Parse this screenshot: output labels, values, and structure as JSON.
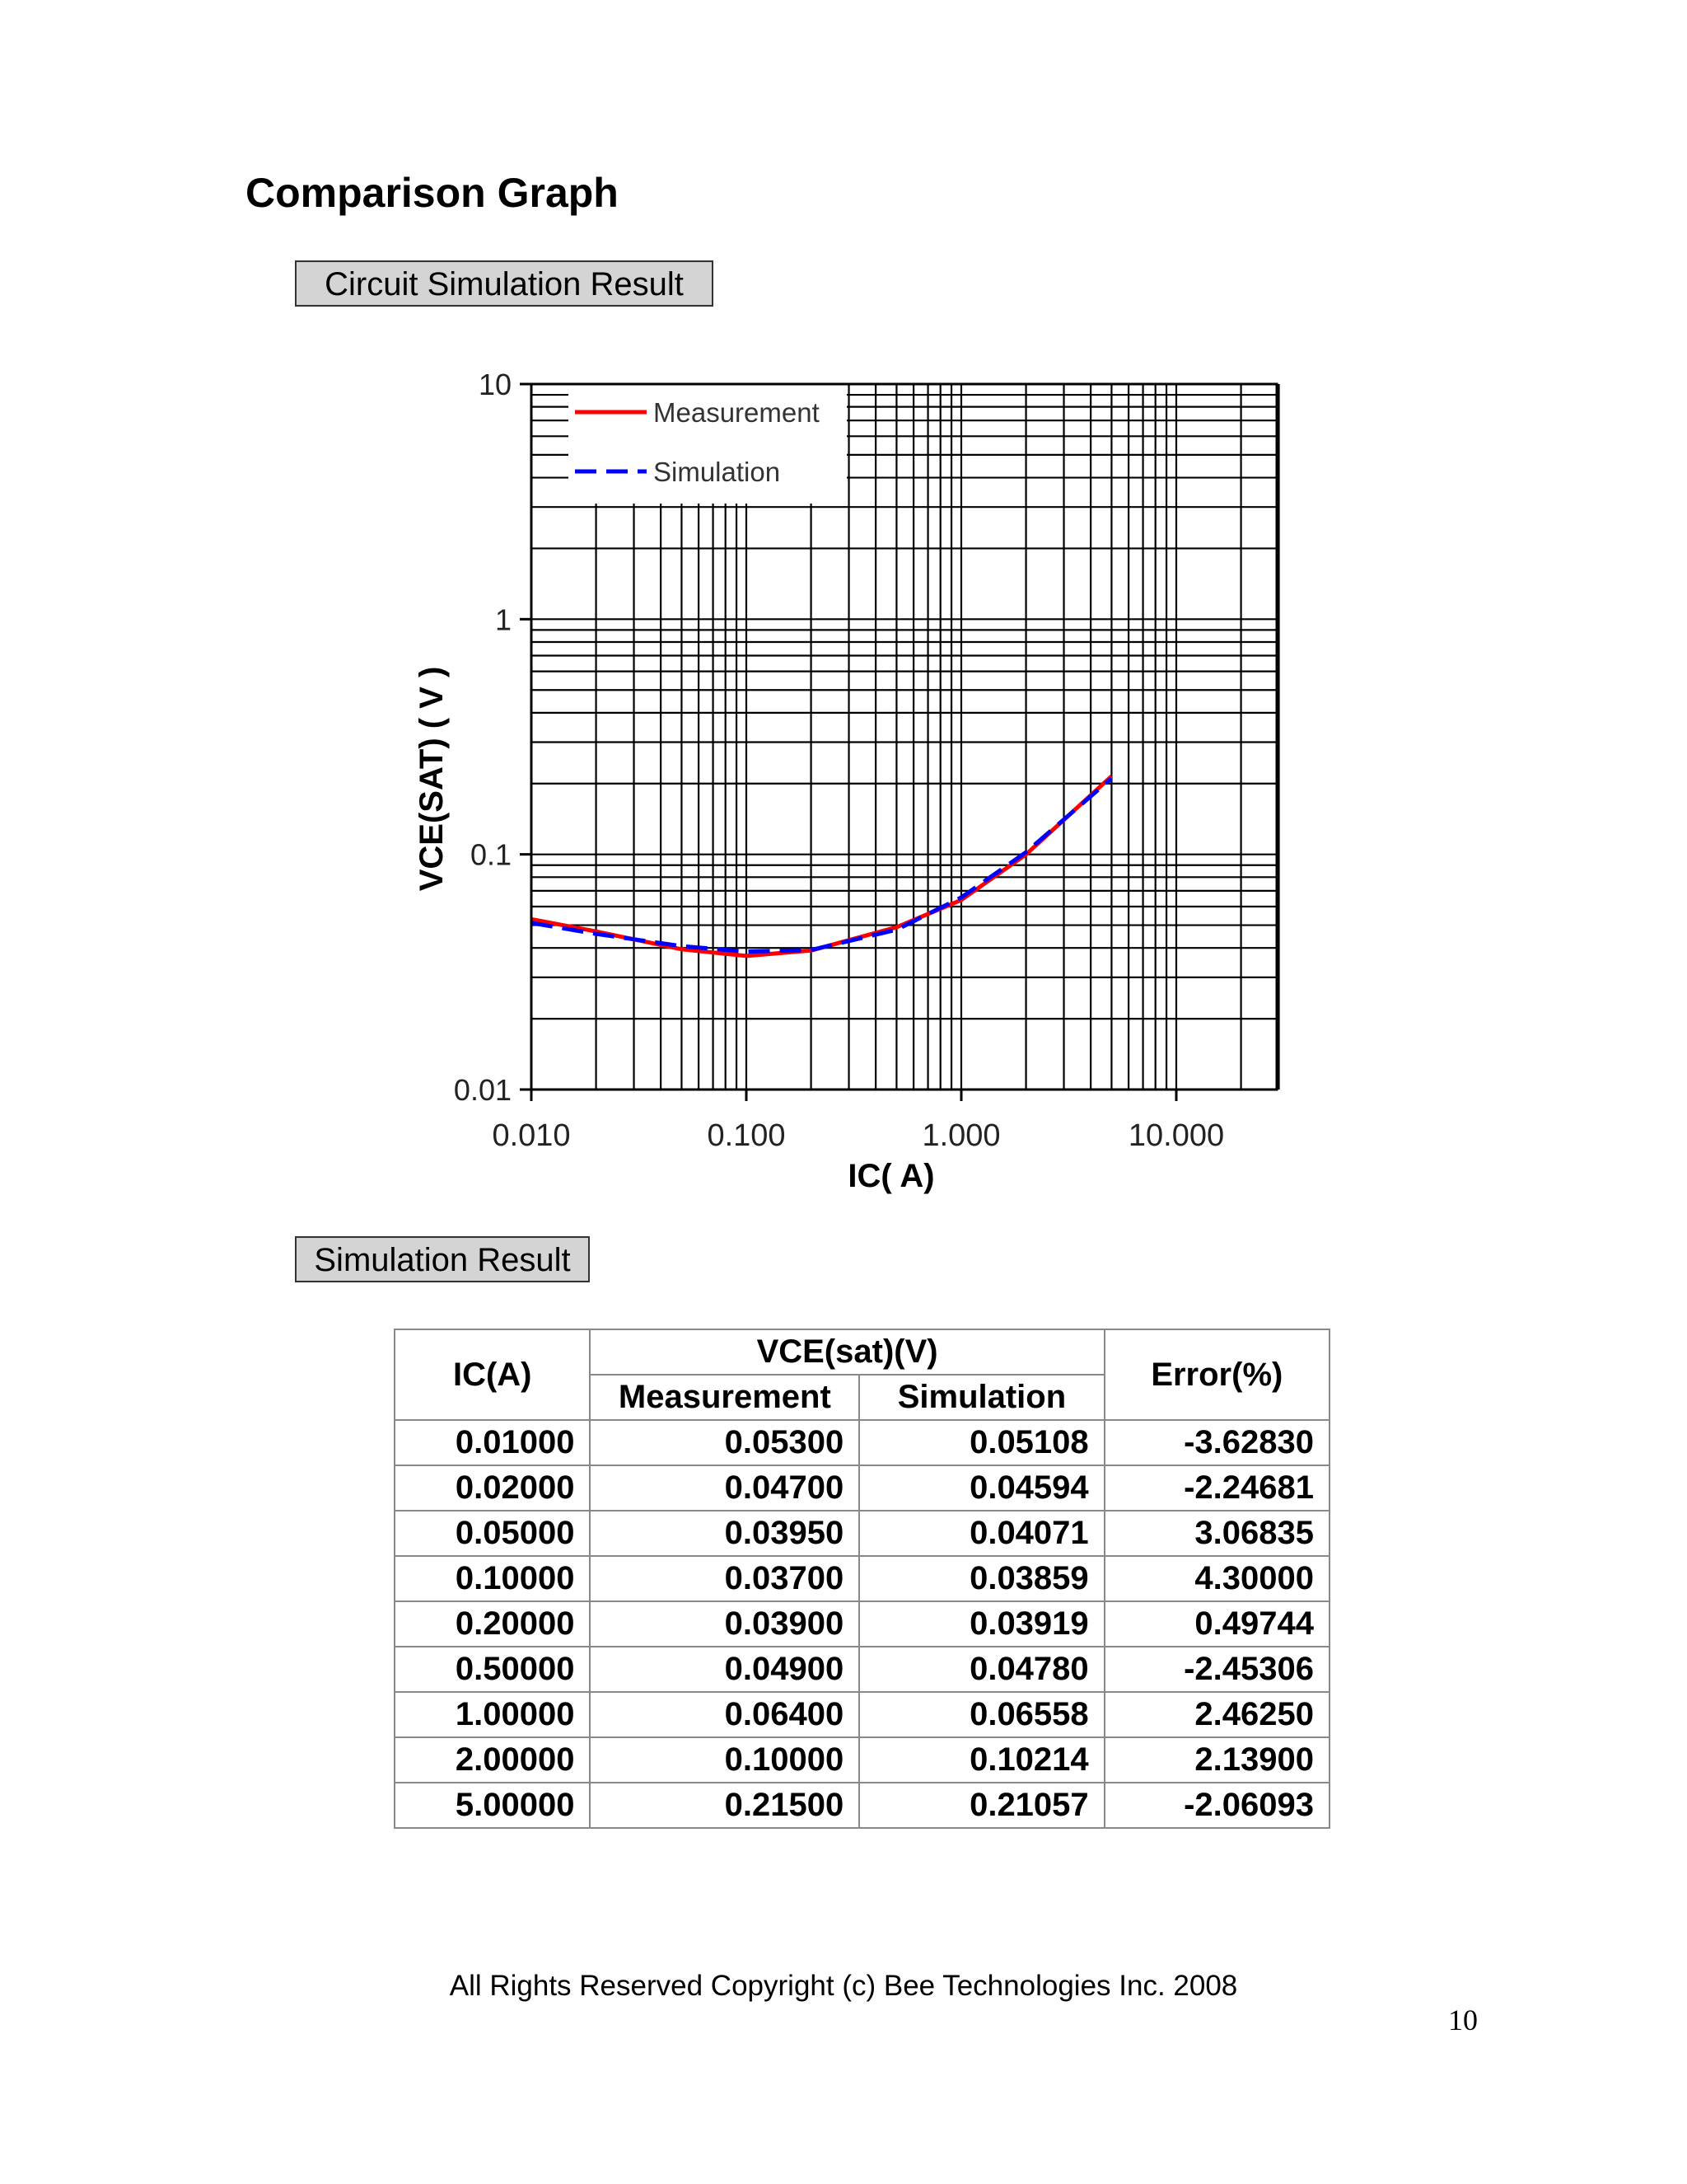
{
  "page": {
    "title": "Comparison Graph",
    "section1_label": "Circuit Simulation Result",
    "section2_label": "Simulation Result",
    "footer": "All Rights Reserved Copyright (c) Bee Technologies Inc. 2008",
    "page_number": "10"
  },
  "chart_data": {
    "type": "line",
    "title": "",
    "xlabel": "IC( A)",
    "ylabel": "VCE(SAT) ( V )",
    "x_scale": "log",
    "y_scale": "log",
    "xlim": [
      0.01,
      30
    ],
    "ylim": [
      0.01,
      10
    ],
    "x_ticks": [
      0.01,
      0.1,
      1,
      10
    ],
    "x_tick_labels": [
      "0.010",
      "0.100",
      "1.000",
      "10.000"
    ],
    "y_ticks": [
      0.01,
      0.1,
      1,
      10
    ],
    "y_tick_labels": [
      "0.01",
      "0.1",
      "1",
      "10"
    ],
    "grid": true,
    "legend": "top-left",
    "x": [
      0.01,
      0.02,
      0.05,
      0.1,
      0.2,
      0.5,
      1,
      2,
      5
    ],
    "series": [
      {
        "name": "Measurement",
        "color": "#ff0000",
        "style": "solid",
        "values": [
          0.053,
          0.047,
          0.0395,
          0.037,
          0.039,
          0.049,
          0.064,
          0.1,
          0.215
        ]
      },
      {
        "name": "Simulation",
        "color": "#0000ff",
        "style": "dashed",
        "values": [
          0.05108,
          0.04594,
          0.04071,
          0.03859,
          0.03919,
          0.0478,
          0.06558,
          0.10214,
          0.21057
        ]
      }
    ]
  },
  "table": {
    "header": {
      "ic": "IC(A)",
      "vce_group": "VCE(sat)(V)",
      "measurement": "Measurement",
      "simulation": "Simulation",
      "error": "Error(%)"
    },
    "rows": [
      [
        "0.01000",
        "0.05300",
        "0.05108",
        "-3.62830"
      ],
      [
        "0.02000",
        "0.04700",
        "0.04594",
        "-2.24681"
      ],
      [
        "0.05000",
        "0.03950",
        "0.04071",
        "3.06835"
      ],
      [
        "0.10000",
        "0.03700",
        "0.03859",
        "4.30000"
      ],
      [
        "0.20000",
        "0.03900",
        "0.03919",
        "0.49744"
      ],
      [
        "0.50000",
        "0.04900",
        "0.04780",
        "-2.45306"
      ],
      [
        "1.00000",
        "0.06400",
        "0.06558",
        "2.46250"
      ],
      [
        "2.00000",
        "0.10000",
        "0.10214",
        "2.13900"
      ],
      [
        "5.00000",
        "0.21500",
        "0.21057",
        "-2.06093"
      ]
    ]
  }
}
